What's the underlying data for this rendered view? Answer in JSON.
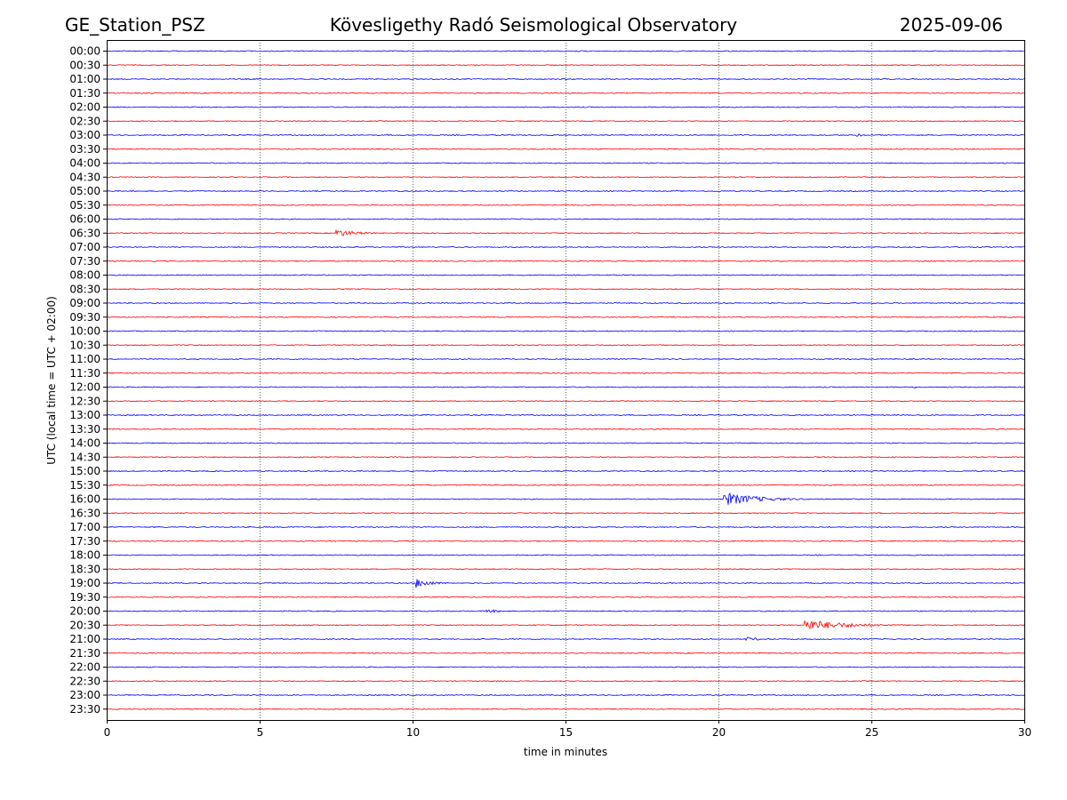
{
  "header": {
    "station": "GE_Station_PSZ",
    "title": "Kövesligethy Radó Seismological Observatory",
    "date": "2025-09-06"
  },
  "chart_data": {
    "type": "line",
    "xlabel": "time in minutes",
    "ylabel": "UTC (local time = UTC + 02:00)",
    "xlim": [
      0,
      30
    ],
    "xticks": [
      0,
      5,
      10,
      15,
      20,
      25,
      30
    ],
    "grid": {
      "vertical": true,
      "style": "dotted"
    },
    "colors": [
      "#0000ff",
      "#ff0000"
    ],
    "rows": [
      "00:00",
      "00:30",
      "01:00",
      "01:30",
      "02:00",
      "02:30",
      "03:00",
      "03:30",
      "04:00",
      "04:30",
      "05:00",
      "05:30",
      "06:00",
      "06:30",
      "07:00",
      "07:30",
      "08:00",
      "08:30",
      "09:00",
      "09:30",
      "10:00",
      "10:30",
      "11:00",
      "11:30",
      "12:00",
      "12:30",
      "13:00",
      "13:30",
      "14:00",
      "14:30",
      "15:00",
      "15:30",
      "16:00",
      "16:30",
      "17:00",
      "17:30",
      "18:00",
      "18:30",
      "19:00",
      "19:30",
      "20:00",
      "20:30",
      "21:00",
      "21:30",
      "22:00",
      "22:30",
      "23:00",
      "23:30"
    ],
    "events": [
      {
        "row": "03:00",
        "start_min": 24.5,
        "duration_min": 0.8,
        "amplitude": 2
      },
      {
        "row": "06:30",
        "start_min": 7.5,
        "duration_min": 2.2,
        "amplitude": 4.5
      },
      {
        "row": "12:00",
        "start_min": 26.4,
        "duration_min": 0.3,
        "amplitude": 1.5
      },
      {
        "row": "16:00",
        "start_min": 20.15,
        "duration_min": 3.5,
        "amplitude": 8
      },
      {
        "row": "19:00",
        "start_min": 10.1,
        "duration_min": 1.5,
        "amplitude": 6
      },
      {
        "row": "20:00",
        "start_min": 12.4,
        "duration_min": 1.6,
        "amplitude": 2.5
      },
      {
        "row": "20:30",
        "start_min": 22.8,
        "duration_min": 4.5,
        "amplitude": 6.5
      },
      {
        "row": "21:00",
        "start_min": 20.9,
        "duration_min": 1.6,
        "amplitude": 2.5
      }
    ]
  }
}
